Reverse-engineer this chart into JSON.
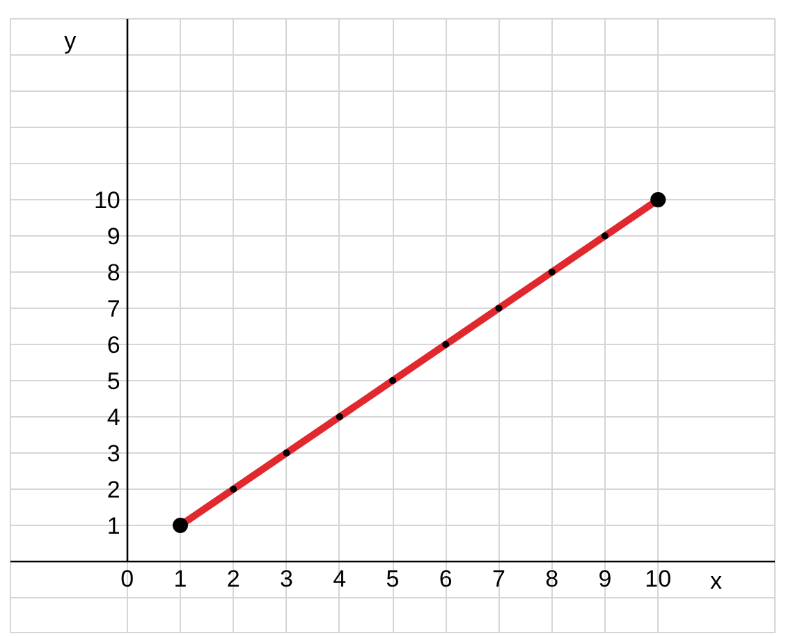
{
  "chart_data": {
    "type": "line",
    "xlabel": "x",
    "ylabel": "y",
    "x": [
      1,
      2,
      3,
      4,
      5,
      6,
      7,
      8,
      9,
      10
    ],
    "series": [
      {
        "color": "#e0282e",
        "values": [
          1,
          2,
          3,
          4,
          5,
          6,
          7,
          8,
          9,
          10
        ]
      }
    ],
    "xlim": [
      -2.2,
      12.2
    ],
    "ylim": [
      -2,
      15
    ],
    "xticks": [
      0,
      1,
      2,
      3,
      4,
      5,
      6,
      7,
      8,
      9,
      10
    ],
    "yticks": [
      {
        "value": -1,
        "label": null
      },
      1,
      2,
      3,
      4,
      5,
      6,
      7,
      8,
      9,
      10,
      {
        "value": 11,
        "label": null
      },
      {
        "value": 12,
        "label": null
      },
      {
        "value": 13,
        "label": null
      },
      {
        "value": 14,
        "label": null
      }
    ],
    "grid": true,
    "marker": "circle",
    "line_style": "solid"
  }
}
